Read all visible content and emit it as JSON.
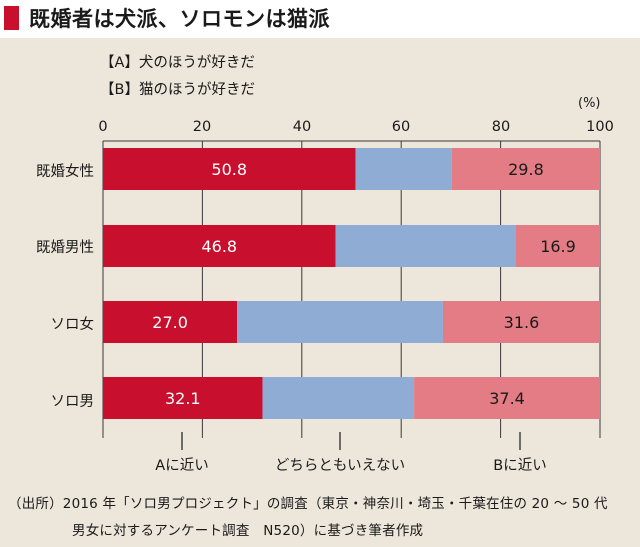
{
  "header": {
    "title": "既婚者は犬派、ソロモンは猫派"
  },
  "legend": {
    "a": "【A】犬のほうが好きだ",
    "b": "【B】猫のほうが好きだ"
  },
  "colors": {
    "a": "#c8102e",
    "neutral": "#8fadd4",
    "b": "#e37c84",
    "panel": "#ece6db",
    "header_mark": "#c8102e"
  },
  "chart_data": {
    "type": "bar",
    "orientation": "horizontal",
    "stacked": true,
    "unit": "(%)",
    "xlim": [
      0,
      100
    ],
    "ticks": [
      "0",
      "20",
      "40",
      "60",
      "80",
      "100"
    ],
    "categories": [
      "既婚女性",
      "既婚男性",
      "ソロ女",
      "ソロ男"
    ],
    "series": [
      {
        "name": "Aに近い",
        "values": [
          50.8,
          46.8,
          27.0,
          32.1
        ],
        "labels": [
          "50.8",
          "46.8",
          "27.0",
          "32.1"
        ]
      },
      {
        "name": "どちらともいえない",
        "values": [
          19.4,
          36.3,
          41.4,
          30.5
        ],
        "labels": [
          "",
          "",
          "",
          ""
        ]
      },
      {
        "name": "Bに近い",
        "values": [
          29.8,
          16.9,
          31.6,
          37.4
        ],
        "labels": [
          "29.8",
          "16.9",
          "31.6",
          "37.4"
        ]
      }
    ],
    "grid": true
  },
  "source": {
    "line1": "（出所）2016 年「ソロ男プロジェクト」の調査（東京・神奈川・埼玉・千葉在住の 20 ～ 50 代",
    "line2": "男女に対するアンケート調査　N520）に基づき筆者作成"
  }
}
